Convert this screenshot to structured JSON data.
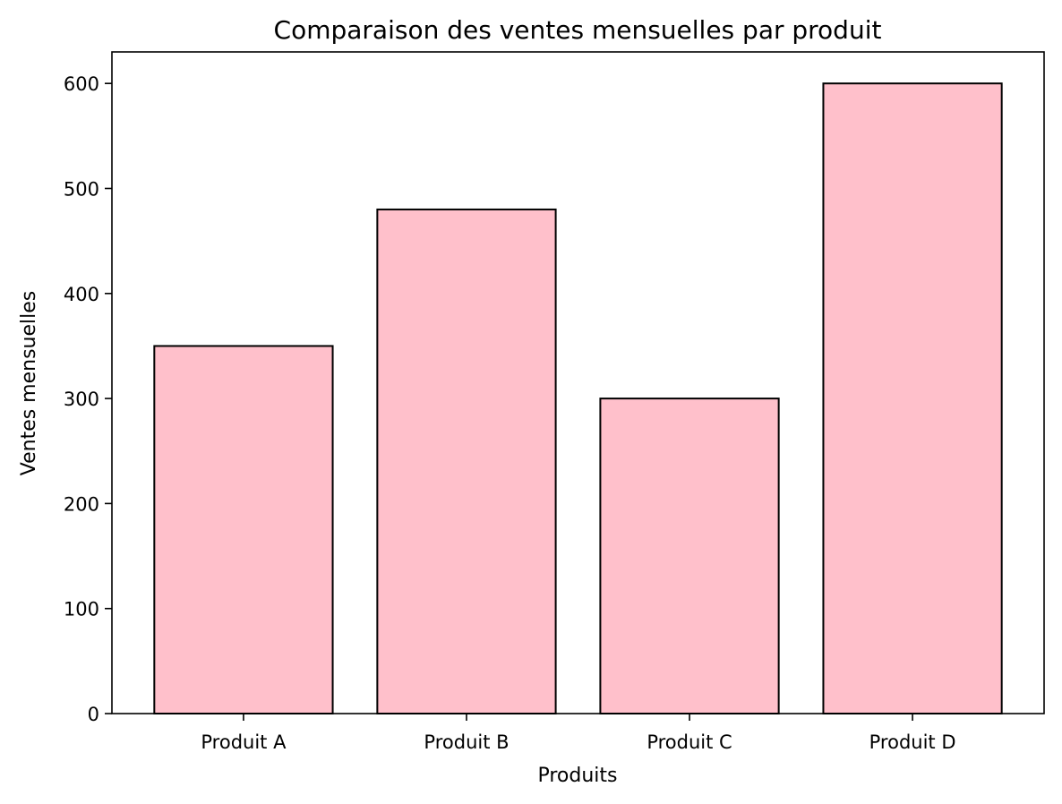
{
  "chart_data": {
    "type": "bar",
    "title": "Comparaison des ventes mensuelles par produit",
    "xlabel": "Produits",
    "ylabel": "Ventes mensuelles",
    "categories": [
      "Produit A",
      "Produit B",
      "Produit C",
      "Produit D"
    ],
    "values": [
      350,
      480,
      300,
      600
    ],
    "ylim": [
      0,
      630
    ],
    "yticks": [
      0,
      100,
      200,
      300,
      400,
      500,
      600
    ],
    "grid": false,
    "legend": "none",
    "bar_color": "#ffc0cb",
    "bar_edge_color": "#000000"
  }
}
